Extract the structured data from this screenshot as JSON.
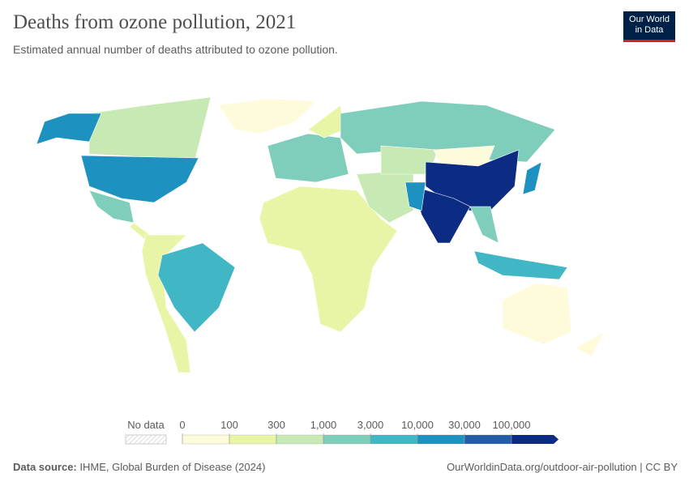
{
  "header": {
    "title": "Deaths from ozone pollution, 2021",
    "subtitle": "Estimated annual number of deaths attributed to ozone pollution.",
    "logo": [
      "Our World",
      "in Data"
    ]
  },
  "legend": {
    "no_data": "No data",
    "labels": [
      "0",
      "100",
      "300",
      "1,000",
      "3,000",
      "10,000",
      "30,000",
      "100,000"
    ],
    "colors": [
      "#fdfbd9",
      "#e9f5a6",
      "#c7e9b4",
      "#7fcdbb",
      "#41b6c4",
      "#1d91c0",
      "#225ea8",
      "#0c2c84"
    ]
  },
  "footer": {
    "source_label": "Data source:",
    "source": "IHME, Global Burden of Disease (2024)",
    "url": "OurWorldinData.org/outdoor-air-pollution | CC BY"
  }
}
